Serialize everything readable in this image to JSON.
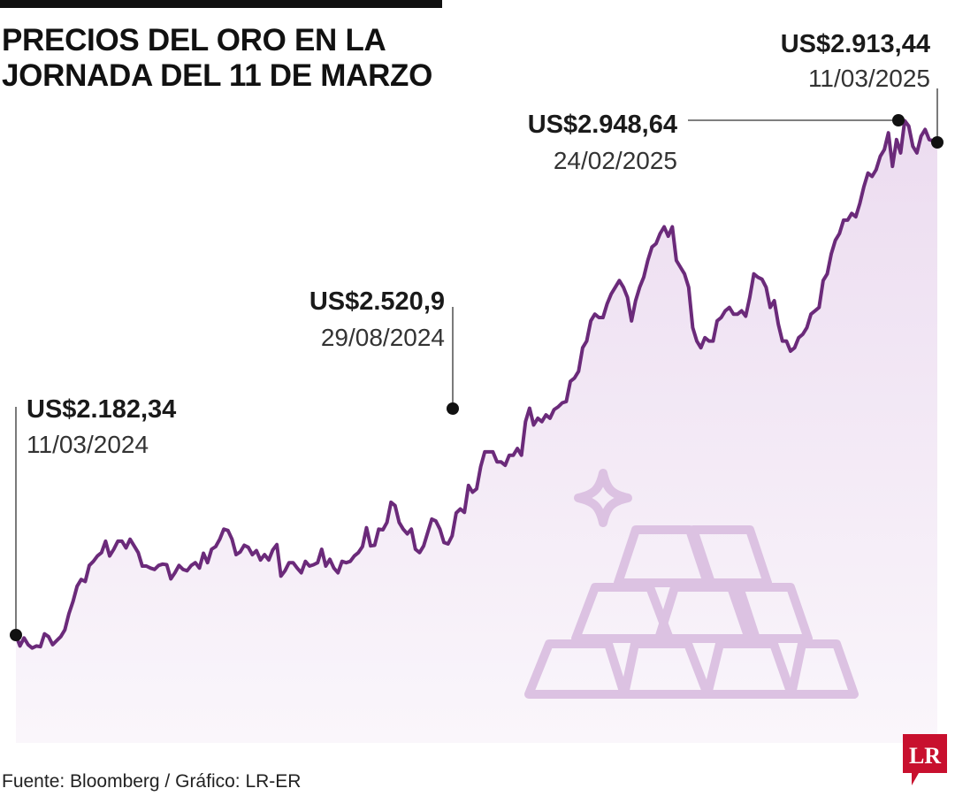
{
  "title": {
    "line1": "PRECIOS DEL ORO EN LA",
    "line2": "JORNADA DEL 11 DE MARZO"
  },
  "source": "Fuente: Bloomberg / Gráfico: LR-ER",
  "logo": {
    "text": "LR",
    "color": "#c8102e"
  },
  "colors": {
    "line": "#6b2a7a",
    "fill": "#f3e8f5",
    "icon": "#dcc2e2",
    "text": "#1a1a1a"
  },
  "icon": "gold-bars-icon",
  "chart_data": {
    "type": "line",
    "title": "PRECIOS DEL ORO EN LA JORNADA DEL 11 DE MARZO",
    "xlabel": "",
    "ylabel": "",
    "x_range": [
      "11/03/2024",
      "11/03/2025"
    ],
    "ylim": [
      2130,
      3000
    ],
    "grid": false,
    "legend": "none",
    "series": [
      {
        "values": [
          2182,
          2166,
          2178,
          2168,
          2163,
          2166,
          2165,
          2184,
          2180,
          2168,
          2174,
          2180,
          2190,
          2214,
          2232,
          2255,
          2265,
          2262,
          2286,
          2292,
          2300,
          2305,
          2322,
          2300,
          2310,
          2322,
          2322,
          2312,
          2325,
          2315,
          2305,
          2285,
          2285,
          2282,
          2280,
          2286,
          2288,
          2287,
          2266,
          2275,
          2286,
          2280,
          2278,
          2286,
          2290,
          2282,
          2304,
          2290,
          2310,
          2314,
          2325,
          2340,
          2338,
          2325,
          2302,
          2306,
          2316,
          2313,
          2302,
          2308,
          2294,
          2302,
          2294,
          2309,
          2317,
          2270,
          2278,
          2290,
          2290,
          2282,
          2275,
          2292,
          2285,
          2287,
          2290,
          2310,
          2285,
          2295,
          2282,
          2275,
          2292,
          2290,
          2292,
          2300,
          2305,
          2314,
          2342,
          2315,
          2316,
          2340,
          2339,
          2350,
          2380,
          2375,
          2350,
          2340,
          2333,
          2340,
          2310,
          2305,
          2315,
          2335,
          2355,
          2352,
          2340,
          2320,
          2318,
          2330,
          2364,
          2370,
          2365,
          2405,
          2395,
          2400,
          2433,
          2455,
          2455,
          2455,
          2440,
          2440,
          2435,
          2450,
          2450,
          2460,
          2450,
          2500,
          2520,
          2495,
          2505,
          2500,
          2510,
          2505,
          2518,
          2522,
          2528,
          2530,
          2560,
          2565,
          2575,
          2610,
          2620,
          2650,
          2660,
          2655,
          2655,
          2675,
          2690,
          2700,
          2710,
          2700,
          2685,
          2650,
          2680,
          2700,
          2715,
          2740,
          2760,
          2765,
          2780,
          2790,
          2776,
          2790,
          2740,
          2730,
          2720,
          2700,
          2640,
          2620,
          2610,
          2625,
          2620,
          2620,
          2650,
          2655,
          2665,
          2670,
          2660,
          2660,
          2665,
          2657,
          2685,
          2720,
          2715,
          2712,
          2700,
          2670,
          2680,
          2645,
          2620,
          2620,
          2605,
          2610,
          2625,
          2630,
          2640,
          2660,
          2665,
          2670,
          2710,
          2720,
          2750,
          2770,
          2780,
          2800,
          2800,
          2810,
          2805,
          2825,
          2850,
          2870,
          2865,
          2875,
          2895,
          2905,
          2930,
          2880,
          2920,
          2900,
          2948,
          2940,
          2910,
          2900,
          2925,
          2935,
          2920,
          2918,
          2913
        ]
      }
    ],
    "annotations": [
      {
        "label": "US$2.182,34",
        "date": "11/03/2024",
        "value": 2182.34
      },
      {
        "label": "US$2.520,9",
        "date": "29/08/2024",
        "value": 2520.9
      },
      {
        "label": "US$2.948,64",
        "date": "24/02/2025",
        "value": 2948.64
      },
      {
        "label": "US$2.913,44",
        "date": "11/03/2025",
        "value": 2913.44
      }
    ]
  }
}
